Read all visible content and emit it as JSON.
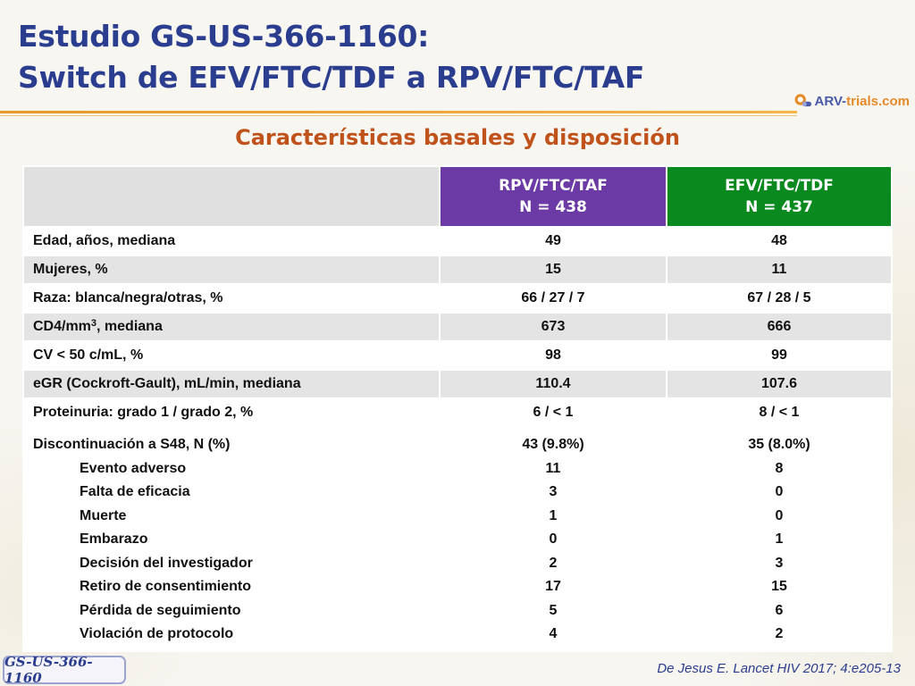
{
  "title": {
    "line1": "Estudio GS-US-366-1160:",
    "line2": "Switch de EFV/FTC/TDF a RPV/FTC/TAF"
  },
  "logo": {
    "text_main": "ARV-",
    "text_accent": "trials",
    "text_end": ".com"
  },
  "subtitle": "Características basales y disposición",
  "table": {
    "columns": [
      {
        "arm": "RPV/FTC/TAF",
        "n": "N = 438",
        "color": "#6b3aa4"
      },
      {
        "arm": "EFV/FTC/TDF",
        "n": "N = 437",
        "color": "#0a8a1e"
      }
    ],
    "rows": [
      {
        "label": "Edad, años, mediana",
        "rpv": "49",
        "efv": "48"
      },
      {
        "label": "Mujeres, %",
        "rpv": "15",
        "efv": "11"
      },
      {
        "label": "Raza: blanca/negra/otras, %",
        "rpv": "66 / 27 / 7",
        "efv": "67 / 28 / 5"
      },
      {
        "label_pre": "CD4/mm",
        "label_sup": "3",
        "label_post": ", mediana",
        "rpv": "673",
        "efv": "666"
      },
      {
        "label": "CV < 50 c/mL, %",
        "rpv": "98",
        "efv": "99"
      },
      {
        "label": "eGR (Cockroft-Gault), mL/min, mediana",
        "rpv": "110.4",
        "efv": "107.6"
      },
      {
        "label": "Proteinuria: grado 1 / grado 2, %",
        "rpv": "6 / < 1",
        "efv": "8 / < 1"
      }
    ],
    "discontinuation": {
      "label": "Discontinuación a S48, N (%)",
      "rpv": "43 (9.8%)",
      "efv": "35 (8.0%)",
      "reasons": [
        {
          "label": "Evento adverso",
          "rpv": "11",
          "efv": "8"
        },
        {
          "label": "Falta de eficacia",
          "rpv": "3",
          "efv": "0"
        },
        {
          "label": "Muerte",
          "rpv": "1",
          "efv": "0"
        },
        {
          "label": "Embarazo",
          "rpv": "0",
          "efv": "1"
        },
        {
          "label": "Decisión del investigador",
          "rpv": "2",
          "efv": "3"
        },
        {
          "label": "Retiro de consentimiento",
          "rpv": "17",
          "efv": "15"
        },
        {
          "label": "Pérdida de seguimiento",
          "rpv": "5",
          "efv": "6"
        },
        {
          "label": "Violación de protocolo",
          "rpv": "4",
          "efv": "2"
        }
      ]
    }
  },
  "badge": "GS-US-366-1160",
  "citation": "De Jesus E. Lancet HIV 2017; 4:e205-13",
  "colors": {
    "title": "#2a3d8f",
    "subtitle": "#c0531c",
    "rule": "#e59a2a"
  }
}
